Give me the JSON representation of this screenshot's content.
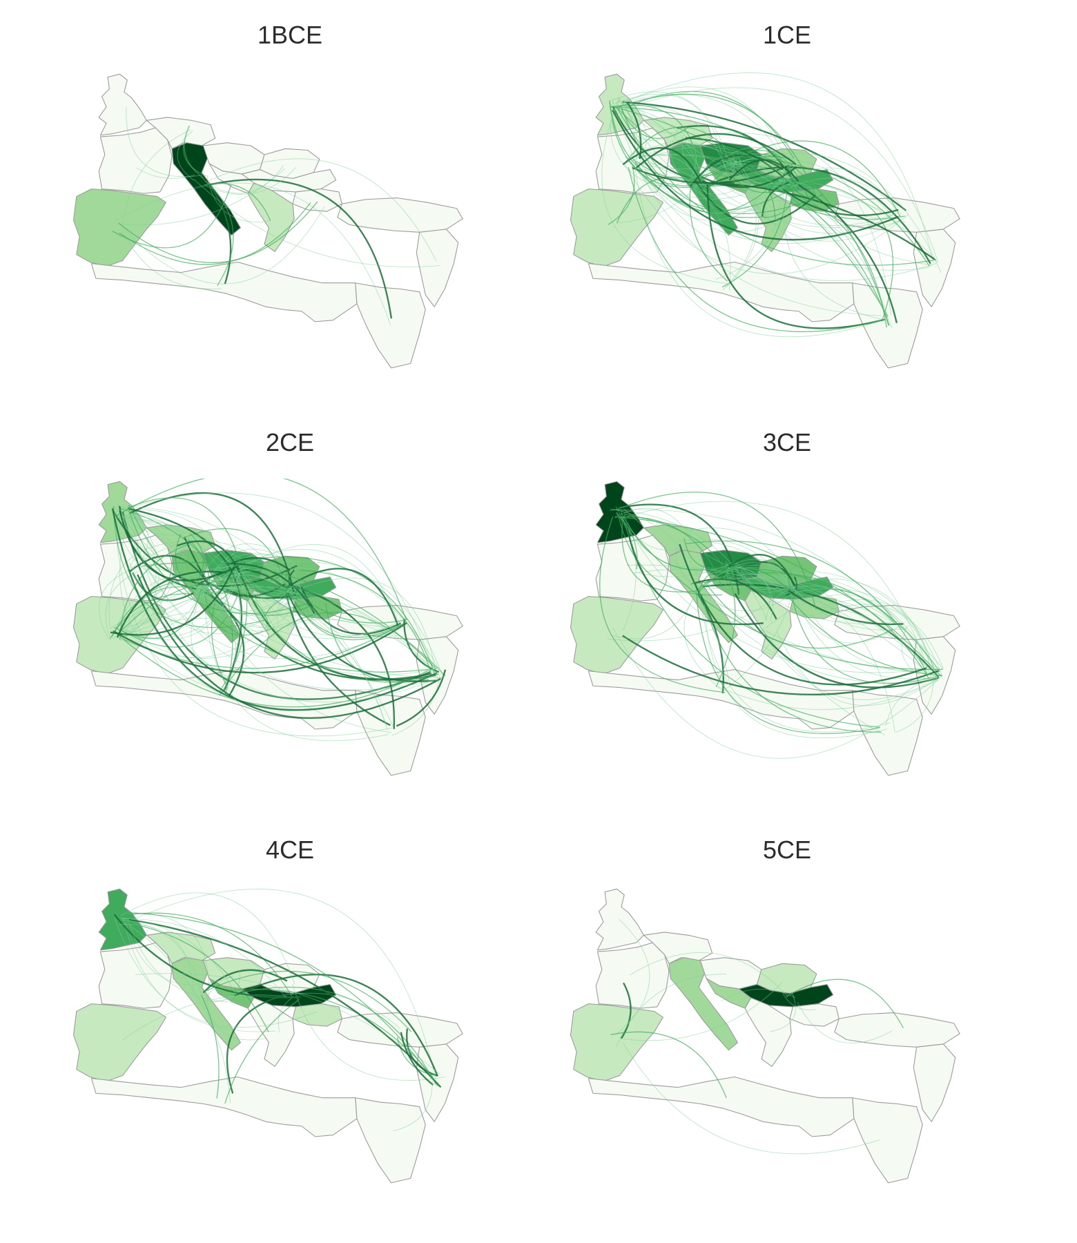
{
  "colors": {
    "land_fill": "#f5faf2",
    "border": "#9a9a9a",
    "shade_scale": [
      "#f5faf2",
      "#c7e9c0",
      "#a1d99b",
      "#74c476",
      "#41ab5d",
      "#238b45",
      "#00441b"
    ],
    "flow_light": "#7fcf9a",
    "flow_mid": "#41ab5d",
    "flow_dark": "#1b6e3a"
  },
  "panels": [
    {
      "title": "1BCE",
      "region_levels": {
        "hispania": 2,
        "gaul": 0,
        "italy": 6,
        "britain": 0,
        "germania": 0,
        "pannonia": 0,
        "dalmatia": 0,
        "dacia": 0,
        "moesia": 0,
        "thrace": 0,
        "greece": 1,
        "anatolia": 0,
        "levant": 0,
        "egypt": 0,
        "africa": 0
      },
      "flow_count": 22,
      "flow_hubs": [
        "italy",
        "hispania"
      ],
      "flow_strength": 0.4
    },
    {
      "title": "1CE",
      "region_levels": {
        "hispania": 1,
        "gaul": 0,
        "italy": 4,
        "britain": 1,
        "germania": 1,
        "pannonia": 5,
        "dalmatia": 3,
        "dacia": 2,
        "moesia": 4,
        "thrace": 3,
        "greece": 2,
        "anatolia": 0,
        "levant": 0,
        "egypt": 0,
        "africa": 0
      },
      "flow_count": 140,
      "flow_hubs": [
        "italy",
        "pannonia",
        "gaul",
        "moesia",
        "britain"
      ],
      "flow_strength": 0.9
    },
    {
      "title": "2CE",
      "region_levels": {
        "hispania": 1,
        "gaul": 0,
        "italy": 3,
        "britain": 2,
        "germania": 2,
        "pannonia": 4,
        "dalmatia": 3,
        "dacia": 3,
        "moesia": 4,
        "thrace": 3,
        "greece": 1,
        "anatolia": 0,
        "levant": 0,
        "egypt": 0,
        "africa": 0
      },
      "flow_count": 170,
      "flow_hubs": [
        "pannonia",
        "italy",
        "moesia",
        "hispania",
        "britain",
        "levant"
      ],
      "flow_strength": 0.9
    },
    {
      "title": "3CE",
      "region_levels": {
        "hispania": 1,
        "gaul": 0,
        "italy": 2,
        "britain": 6,
        "germania": 2,
        "pannonia": 5,
        "dalmatia": 3,
        "dacia": 3,
        "moesia": 4,
        "thrace": 2,
        "greece": 1,
        "anatolia": 0,
        "levant": 0,
        "egypt": 0,
        "africa": 0
      },
      "flow_count": 110,
      "flow_hubs": [
        "britain",
        "pannonia",
        "moesia",
        "italy",
        "levant"
      ],
      "flow_strength": 0.8
    },
    {
      "title": "4CE",
      "region_levels": {
        "hispania": 1,
        "gaul": 0,
        "italy": 2,
        "britain": 4,
        "germania": 1,
        "pannonia": 1,
        "dalmatia": 3,
        "dacia": 0,
        "moesia": 6,
        "thrace": 1,
        "greece": 0,
        "anatolia": 0,
        "levant": 0,
        "egypt": 0,
        "africa": 0
      },
      "flow_count": 38,
      "flow_hubs": [
        "moesia",
        "britain",
        "italy",
        "levant"
      ],
      "flow_strength": 0.5
    },
    {
      "title": "5CE",
      "region_levels": {
        "hispania": 1,
        "gaul": 0,
        "italy": 2,
        "britain": 0,
        "germania": 0,
        "pannonia": 0,
        "dalmatia": 2,
        "dacia": 1,
        "moesia": 6,
        "thrace": 0,
        "greece": 0,
        "anatolia": 0,
        "levant": 0,
        "egypt": 0,
        "africa": 0
      },
      "flow_count": 12,
      "flow_hubs": [
        "moesia",
        "hispania"
      ],
      "flow_strength": 0.3
    }
  ]
}
